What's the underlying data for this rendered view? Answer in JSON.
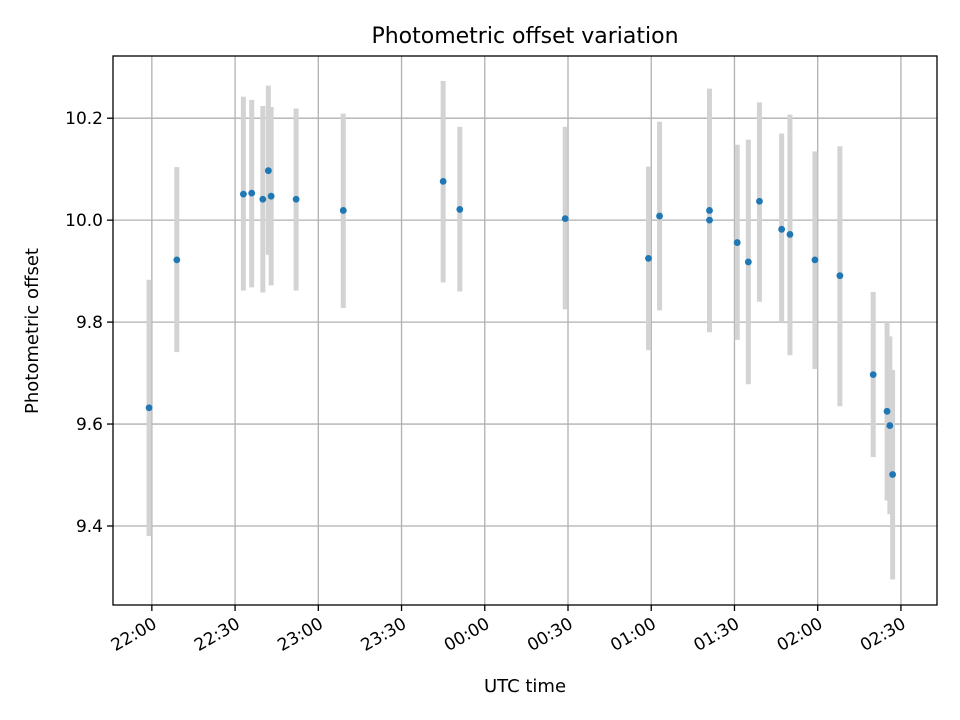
{
  "chart_data": {
    "type": "scatter",
    "title": "Photometric offset variation",
    "xlabel": "UTC time",
    "ylabel": "Photometric offset",
    "xlim": [
      "21:46",
      "02:43"
    ],
    "ylim": [
      9.245,
      10.322
    ],
    "grid": true,
    "x_ticks": [
      "22:00",
      "22:30",
      "23:00",
      "23:30",
      "00:00",
      "00:30",
      "01:00",
      "01:30",
      "02:00",
      "02:30"
    ],
    "y_ticks": [
      9.4,
      9.6,
      9.8,
      10.0,
      10.2
    ],
    "y_tick_labels": [
      "9.4",
      "9.6",
      "9.8",
      "10.0",
      "10.2"
    ],
    "marker_color": "#1f77b4",
    "errorbar_color": "#d3d3d3",
    "points": [
      {
        "time": "21:59",
        "y": 9.632,
        "err_low": 9.38,
        "err_high": 9.883
      },
      {
        "time": "22:09",
        "y": 9.922,
        "err_low": 9.741,
        "err_high": 10.104
      },
      {
        "time": "22:33",
        "y": 10.051,
        "err_low": 9.862,
        "err_high": 10.242
      },
      {
        "time": "22:36",
        "y": 10.053,
        "err_low": 9.868,
        "err_high": 10.236
      },
      {
        "time": "22:40",
        "y": 10.041,
        "err_low": 9.858,
        "err_high": 10.224
      },
      {
        "time": "22:42",
        "y": 10.097,
        "err_low": 9.932,
        "err_high": 10.264
      },
      {
        "time": "22:43",
        "y": 10.047,
        "err_low": 9.872,
        "err_high": 10.222
      },
      {
        "time": "22:52",
        "y": 10.041,
        "err_low": 9.862,
        "err_high": 10.219
      },
      {
        "time": "23:09",
        "y": 10.019,
        "err_low": 9.828,
        "err_high": 10.209
      },
      {
        "time": "23:45",
        "y": 10.076,
        "err_low": 9.878,
        "err_high": 10.273
      },
      {
        "time": "23:51",
        "y": 10.021,
        "err_low": 9.86,
        "err_high": 10.183
      },
      {
        "time": "00:29",
        "y": 10.003,
        "err_low": 9.825,
        "err_high": 10.183
      },
      {
        "time": "00:59",
        "y": 9.925,
        "err_low": 9.745,
        "err_high": 10.105
      },
      {
        "time": "01:03",
        "y": 10.008,
        "err_low": 9.823,
        "err_high": 10.193
      },
      {
        "time": "01:21",
        "y": 10.019,
        "err_low": 9.78,
        "err_high": 10.258
      },
      {
        "time": "01:21",
        "y": 10.0,
        "err_low": 9.782,
        "err_high": 10.219
      },
      {
        "time": "01:31",
        "y": 9.956,
        "err_low": 9.765,
        "err_high": 10.148
      },
      {
        "time": "01:35",
        "y": 9.918,
        "err_low": 9.678,
        "err_high": 10.158
      },
      {
        "time": "01:39",
        "y": 10.037,
        "err_low": 9.84,
        "err_high": 10.231
      },
      {
        "time": "01:47",
        "y": 9.982,
        "err_low": 9.8,
        "err_high": 10.17
      },
      {
        "time": "01:50",
        "y": 9.972,
        "err_low": 9.735,
        "err_high": 10.207
      },
      {
        "time": "01:59",
        "y": 9.922,
        "err_low": 9.708,
        "err_high": 10.135
      },
      {
        "time": "02:08",
        "y": 9.891,
        "err_low": 9.635,
        "err_high": 10.145
      },
      {
        "time": "02:20",
        "y": 9.697,
        "err_low": 9.535,
        "err_high": 9.859
      },
      {
        "time": "02:25",
        "y": 9.625,
        "err_low": 9.45,
        "err_high": 9.8
      },
      {
        "time": "02:26",
        "y": 9.597,
        "err_low": 9.423,
        "err_high": 9.772
      },
      {
        "time": "02:27",
        "y": 9.501,
        "err_low": 9.295,
        "err_high": 9.706
      }
    ]
  }
}
